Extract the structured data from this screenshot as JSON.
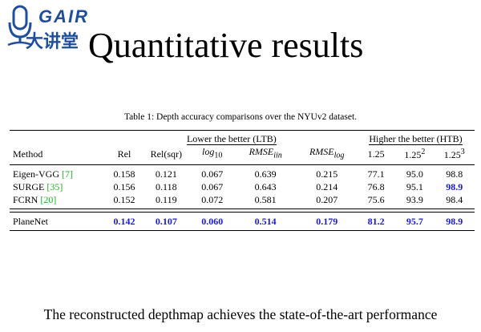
{
  "logo": {
    "brand": "GAIR",
    "chinese": "大讲堂"
  },
  "title": "Quantitative results",
  "caption": "Table 1: Depth accuracy comparisons over the NYUv2 dataset.",
  "table": {
    "groups": {
      "ltb": "Lower the better (LTB)",
      "htb": "Higher the better (HTB)"
    },
    "columns": [
      "Method",
      "Rel",
      "Rel(sqr)",
      "log10",
      "RMSEiin",
      "RMSElog",
      "1.25",
      "1.25²",
      "1.25³"
    ],
    "column_display": {
      "log_base": "log",
      "log_sub": "10",
      "rmse": "RMSE",
      "rmse_iin_sub": "iin",
      "rmse_log_sub": "log",
      "d1": "1.25",
      "d2_base": "1.25",
      "d2_sup": "2",
      "d3_base": "1.25",
      "d3_sup": "3"
    },
    "rows": [
      {
        "method": "Eigen-VGG",
        "cite": "[7]",
        "values": [
          "0.158",
          "0.121",
          "0.067",
          "0.639",
          "0.215",
          "77.1",
          "95.0",
          "98.8"
        ],
        "best": [
          false,
          false,
          false,
          false,
          false,
          false,
          false,
          false
        ]
      },
      {
        "method": "SURGE",
        "cite": "[35]",
        "values": [
          "0.156",
          "0.118",
          "0.067",
          "0.643",
          "0.214",
          "76.8",
          "95.1",
          "98.9"
        ],
        "best": [
          false,
          false,
          false,
          false,
          false,
          false,
          false,
          true
        ]
      },
      {
        "method": "FCRN",
        "cite": "[20]",
        "values": [
          "0.152",
          "0.119",
          "0.072",
          "0.581",
          "0.207",
          "75.6",
          "93.9",
          "98.4"
        ],
        "best": [
          false,
          false,
          false,
          false,
          false,
          false,
          false,
          false
        ]
      },
      {
        "method": "PlaneNet",
        "cite": "",
        "values": [
          "0.142",
          "0.107",
          "0.060",
          "0.514",
          "0.179",
          "81.2",
          "95.7",
          "98.9"
        ],
        "best": [
          true,
          true,
          true,
          true,
          true,
          true,
          true,
          true
        ]
      }
    ],
    "colors": {
      "best": "#1a1ad6",
      "citation": "#22b022"
    }
  },
  "footer": "The reconstructed depthmap achieves the state-of-the-art performance"
}
